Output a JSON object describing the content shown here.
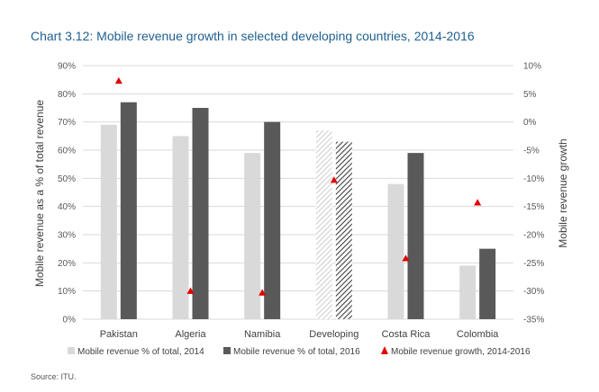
{
  "title": "Chart 3.12: Mobile revenue growth in selected developing countries, 2014-2016",
  "source": "Source: ITU.",
  "chart_data": {
    "type": "bar",
    "categories": [
      "Pakistan",
      "Algeria",
      "Namibia",
      "Developing",
      "Costa Rica",
      "Colombia"
    ],
    "series": [
      {
        "name": "Mobile revenue % of total, 2014",
        "axis": "left",
        "type": "bar",
        "values": [
          69,
          65,
          59,
          67,
          48,
          19
        ]
      },
      {
        "name": "Mobile revenue % of total, 2016",
        "axis": "left",
        "type": "bar",
        "values": [
          77,
          75,
          70,
          63,
          59,
          25
        ]
      },
      {
        "name": "Mobile revenue growth, 2014-2016",
        "axis": "right",
        "type": "scatter",
        "marker": "triangle",
        "values": [
          7.3,
          -30,
          -30.3,
          -10.3,
          -24.2,
          -14.3
        ]
      }
    ],
    "ylabel": "Mobile revenue as a % of total revenue",
    "y2label": "Mobile revenue growth",
    "ylim": [
      0,
      90
    ],
    "y2lim": [
      -35,
      10
    ],
    "yticks": [
      "0%",
      "10%",
      "20%",
      "30%",
      "40%",
      "50%",
      "60%",
      "70%",
      "80%",
      "90%"
    ],
    "y2ticks": [
      "-35%",
      "-30%",
      "-25%",
      "-20%",
      "-15%",
      "-10%",
      "-5%",
      "0%",
      "5%",
      "10%"
    ],
    "highlight_category": "Developing",
    "grid": true,
    "legend_position": "bottom",
    "colors": {
      "bar2014": "#d9d9d9",
      "bar2016": "#595959",
      "marker": "#e00000",
      "grid": "#d9d9d9",
      "title": "#1f5f8f"
    }
  }
}
